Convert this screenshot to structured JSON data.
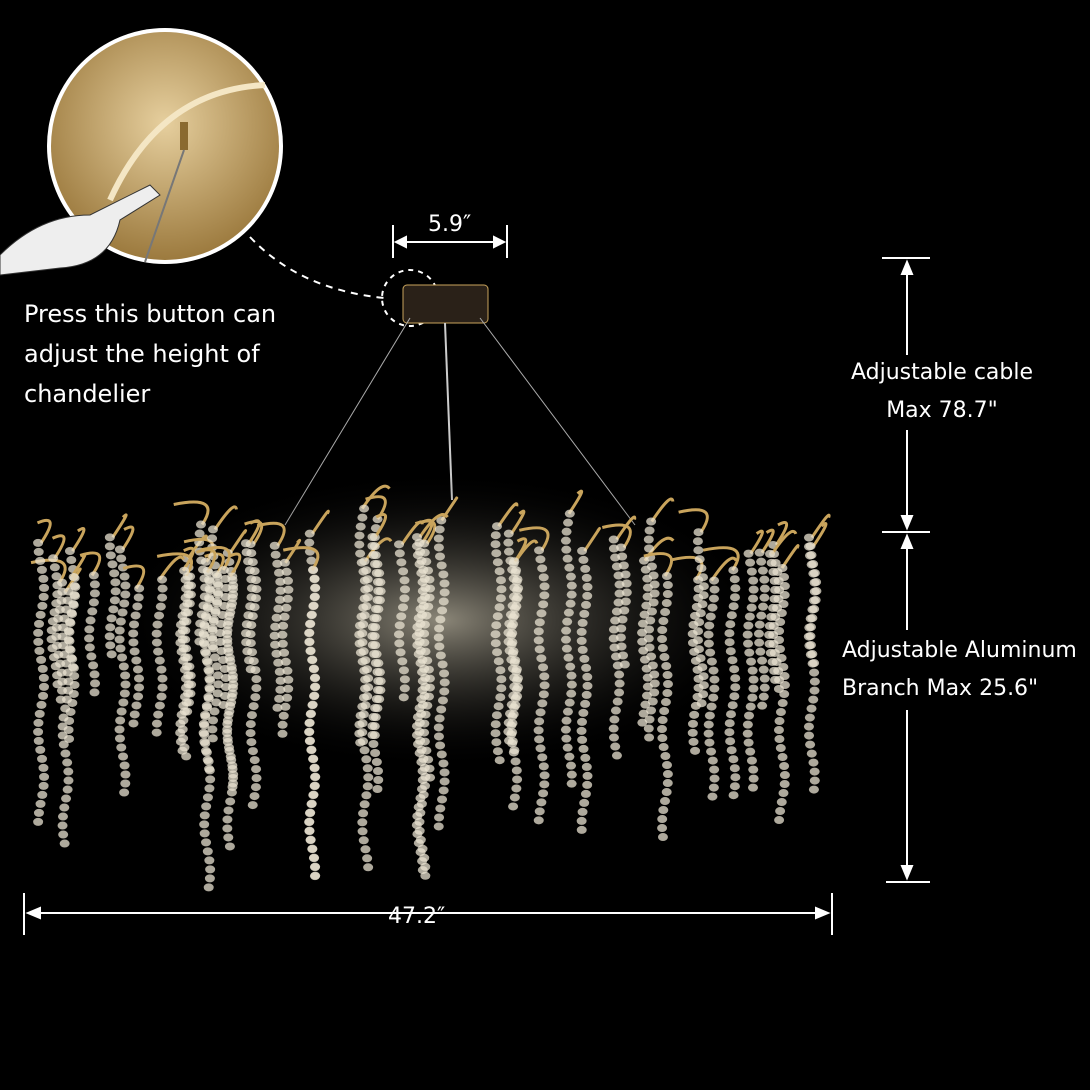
{
  "annotations": {
    "canopy_width": "5.9″",
    "press_note": "Press this button can adjust the height of chandelier",
    "cable_line1": "Adjustable cable",
    "cable_line2": "Max 78.7\"",
    "branch_line1": "Adjustable Aluminum",
    "branch_line2": "Branch Max 25.6\"",
    "overall_width": "47.2″"
  },
  "colors": {
    "background": "#000000",
    "gold": "#c9a45c",
    "crystal": "#e8e2d0"
  }
}
